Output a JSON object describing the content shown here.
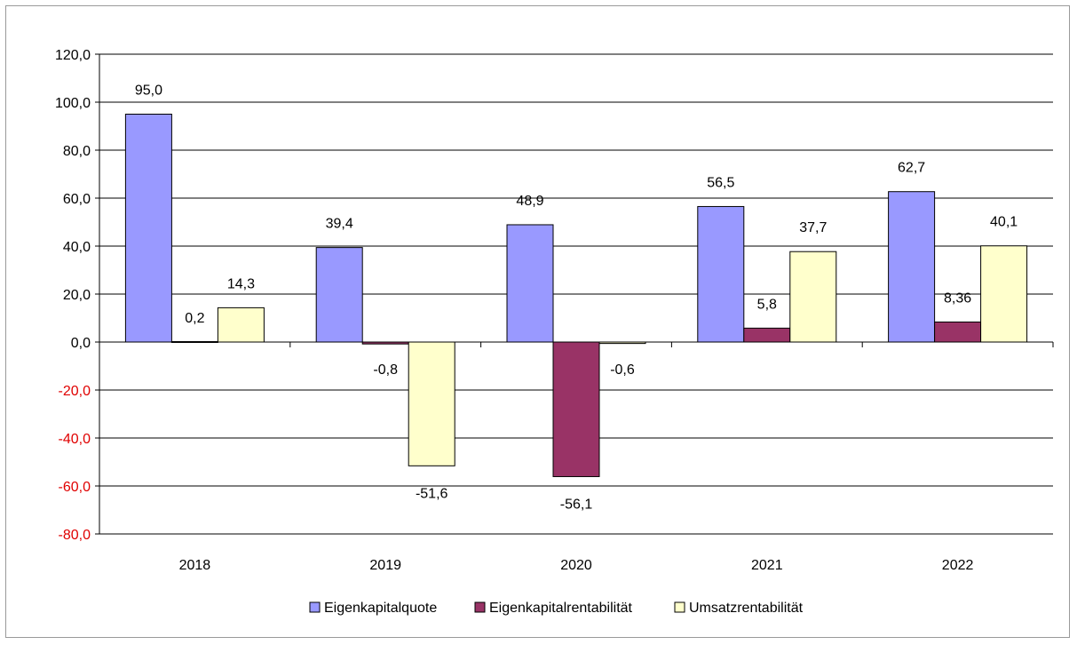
{
  "chart_data": {
    "type": "bar",
    "categories": [
      "2018",
      "2019",
      "2020",
      "2021",
      "2022"
    ],
    "series": [
      {
        "name": "Eigenkapitalquote",
        "color": "#9999ff",
        "values": [
          95.0,
          39.4,
          48.9,
          56.5,
          62.7
        ],
        "labels": [
          "95,0",
          "39,4",
          "48,9",
          "56,5",
          "62,7"
        ]
      },
      {
        "name": "Eigenkapitalrentabilität",
        "color": "#993366",
        "values": [
          0.2,
          -0.8,
          -56.1,
          5.8,
          8.36
        ],
        "labels": [
          "0,2",
          "-0,8",
          "-56,1",
          "5,8",
          "8,36"
        ]
      },
      {
        "name": "Umsatzrentabilität",
        "color": "#ffffcc",
        "values": [
          14.3,
          -51.6,
          -0.6,
          37.7,
          40.1
        ],
        "labels": [
          "14,3",
          "-51,6",
          "-0,6",
          "37,7",
          "40,1"
        ]
      }
    ],
    "yticks": [
      "120,0",
      "100,0",
      "80,0",
      "60,0",
      "40,0",
      "20,0",
      "0,0",
      "-20,0",
      "-40,0",
      "-60,0",
      "-80,0"
    ],
    "ylim": [
      -80,
      120
    ],
    "grid": true,
    "legend_position": "bottom",
    "negative_tick_color": "#e00000"
  }
}
